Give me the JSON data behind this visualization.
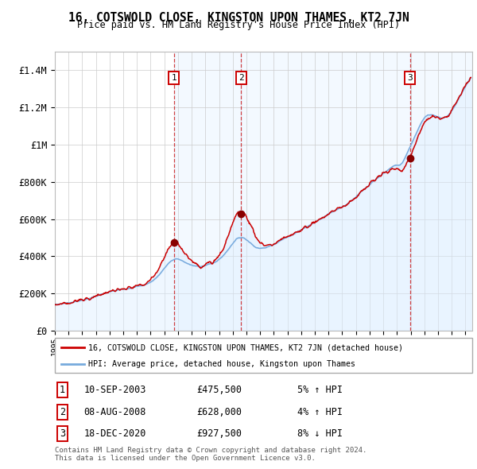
{
  "title": "16, COTSWOLD CLOSE, KINGSTON UPON THAMES, KT2 7JN",
  "subtitle": "Price paid vs. HM Land Registry's House Price Index (HPI)",
  "sales": [
    {
      "date_num": 2003.69,
      "price": 475500,
      "label": "1"
    },
    {
      "date_num": 2008.6,
      "price": 628000,
      "label": "2"
    },
    {
      "date_num": 2020.96,
      "price": 927500,
      "label": "3"
    }
  ],
  "table_rows": [
    {
      "num": "1",
      "date": "10-SEP-2003",
      "price": "£475,500",
      "pct": "5% ↑ HPI"
    },
    {
      "num": "2",
      "date": "08-AUG-2008",
      "price": "£628,000",
      "pct": "4% ↑ HPI"
    },
    {
      "num": "3",
      "date": "18-DEC-2020",
      "price": "£927,500",
      "pct": "8% ↓ HPI"
    }
  ],
  "legend_entries": [
    "16, COTSWOLD CLOSE, KINGSTON UPON THAMES, KT2 7JN (detached house)",
    "HPI: Average price, detached house, Kingston upon Thames"
  ],
  "footnote": "Contains HM Land Registry data © Crown copyright and database right 2024.\nThis data is licensed under the Open Government Licence v3.0.",
  "price_line_color": "#cc0000",
  "hpi_line_color": "#77aadd",
  "sale_marker_color": "#880000",
  "vline_color": "#cc2222",
  "shade_color": "#ddeeff",
  "ylim": [
    0,
    1500000
  ],
  "yticks": [
    0,
    200000,
    400000,
    600000,
    800000,
    1000000,
    1200000,
    1400000
  ],
  "ytick_labels": [
    "£0",
    "£200K",
    "£400K",
    "£600K",
    "£800K",
    "£1M",
    "£1.2M",
    "£1.4M"
  ],
  "xlim_start": 1995,
  "xlim_end": 2025.5
}
